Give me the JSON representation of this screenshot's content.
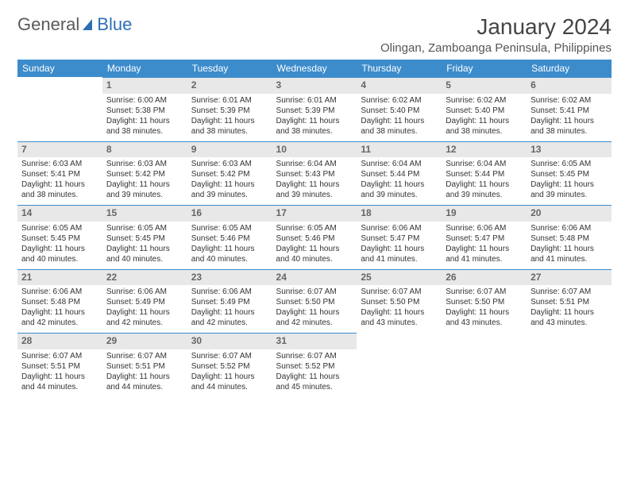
{
  "logo": {
    "text1": "General",
    "text2": "Blue"
  },
  "title": "January 2024",
  "location": "Olingan, Zamboanga Peninsula, Philippines",
  "colors": {
    "header_bg": "#3c8ccc",
    "header_text": "#ffffff",
    "daynum_bg": "#e8e8e8",
    "daynum_border": "#3c8ccc",
    "body_bg": "#ffffff",
    "text": "#333333"
  },
  "font": {
    "family": "Arial",
    "title_size": 28,
    "header_size": 12,
    "body_size": 10
  },
  "weekdays": [
    "Sunday",
    "Monday",
    "Tuesday",
    "Wednesday",
    "Thursday",
    "Friday",
    "Saturday"
  ],
  "leading_blanks": 1,
  "days": [
    {
      "n": 1,
      "sr": "6:00 AM",
      "ss": "5:38 PM",
      "dl": "11 hours and 38 minutes."
    },
    {
      "n": 2,
      "sr": "6:01 AM",
      "ss": "5:39 PM",
      "dl": "11 hours and 38 minutes."
    },
    {
      "n": 3,
      "sr": "6:01 AM",
      "ss": "5:39 PM",
      "dl": "11 hours and 38 minutes."
    },
    {
      "n": 4,
      "sr": "6:02 AM",
      "ss": "5:40 PM",
      "dl": "11 hours and 38 minutes."
    },
    {
      "n": 5,
      "sr": "6:02 AM",
      "ss": "5:40 PM",
      "dl": "11 hours and 38 minutes."
    },
    {
      "n": 6,
      "sr": "6:02 AM",
      "ss": "5:41 PM",
      "dl": "11 hours and 38 minutes."
    },
    {
      "n": 7,
      "sr": "6:03 AM",
      "ss": "5:41 PM",
      "dl": "11 hours and 38 minutes."
    },
    {
      "n": 8,
      "sr": "6:03 AM",
      "ss": "5:42 PM",
      "dl": "11 hours and 39 minutes."
    },
    {
      "n": 9,
      "sr": "6:03 AM",
      "ss": "5:42 PM",
      "dl": "11 hours and 39 minutes."
    },
    {
      "n": 10,
      "sr": "6:04 AM",
      "ss": "5:43 PM",
      "dl": "11 hours and 39 minutes."
    },
    {
      "n": 11,
      "sr": "6:04 AM",
      "ss": "5:44 PM",
      "dl": "11 hours and 39 minutes."
    },
    {
      "n": 12,
      "sr": "6:04 AM",
      "ss": "5:44 PM",
      "dl": "11 hours and 39 minutes."
    },
    {
      "n": 13,
      "sr": "6:05 AM",
      "ss": "5:45 PM",
      "dl": "11 hours and 39 minutes."
    },
    {
      "n": 14,
      "sr": "6:05 AM",
      "ss": "5:45 PM",
      "dl": "11 hours and 40 minutes."
    },
    {
      "n": 15,
      "sr": "6:05 AM",
      "ss": "5:45 PM",
      "dl": "11 hours and 40 minutes."
    },
    {
      "n": 16,
      "sr": "6:05 AM",
      "ss": "5:46 PM",
      "dl": "11 hours and 40 minutes."
    },
    {
      "n": 17,
      "sr": "6:05 AM",
      "ss": "5:46 PM",
      "dl": "11 hours and 40 minutes."
    },
    {
      "n": 18,
      "sr": "6:06 AM",
      "ss": "5:47 PM",
      "dl": "11 hours and 41 minutes."
    },
    {
      "n": 19,
      "sr": "6:06 AM",
      "ss": "5:47 PM",
      "dl": "11 hours and 41 minutes."
    },
    {
      "n": 20,
      "sr": "6:06 AM",
      "ss": "5:48 PM",
      "dl": "11 hours and 41 minutes."
    },
    {
      "n": 21,
      "sr": "6:06 AM",
      "ss": "5:48 PM",
      "dl": "11 hours and 42 minutes."
    },
    {
      "n": 22,
      "sr": "6:06 AM",
      "ss": "5:49 PM",
      "dl": "11 hours and 42 minutes."
    },
    {
      "n": 23,
      "sr": "6:06 AM",
      "ss": "5:49 PM",
      "dl": "11 hours and 42 minutes."
    },
    {
      "n": 24,
      "sr": "6:07 AM",
      "ss": "5:50 PM",
      "dl": "11 hours and 42 minutes."
    },
    {
      "n": 25,
      "sr": "6:07 AM",
      "ss": "5:50 PM",
      "dl": "11 hours and 43 minutes."
    },
    {
      "n": 26,
      "sr": "6:07 AM",
      "ss": "5:50 PM",
      "dl": "11 hours and 43 minutes."
    },
    {
      "n": 27,
      "sr": "6:07 AM",
      "ss": "5:51 PM",
      "dl": "11 hours and 43 minutes."
    },
    {
      "n": 28,
      "sr": "6:07 AM",
      "ss": "5:51 PM",
      "dl": "11 hours and 44 minutes."
    },
    {
      "n": 29,
      "sr": "6:07 AM",
      "ss": "5:51 PM",
      "dl": "11 hours and 44 minutes."
    },
    {
      "n": 30,
      "sr": "6:07 AM",
      "ss": "5:52 PM",
      "dl": "11 hours and 44 minutes."
    },
    {
      "n": 31,
      "sr": "6:07 AM",
      "ss": "5:52 PM",
      "dl": "11 hours and 45 minutes."
    }
  ],
  "labels": {
    "sunrise": "Sunrise:",
    "sunset": "Sunset:",
    "daylight": "Daylight:"
  }
}
